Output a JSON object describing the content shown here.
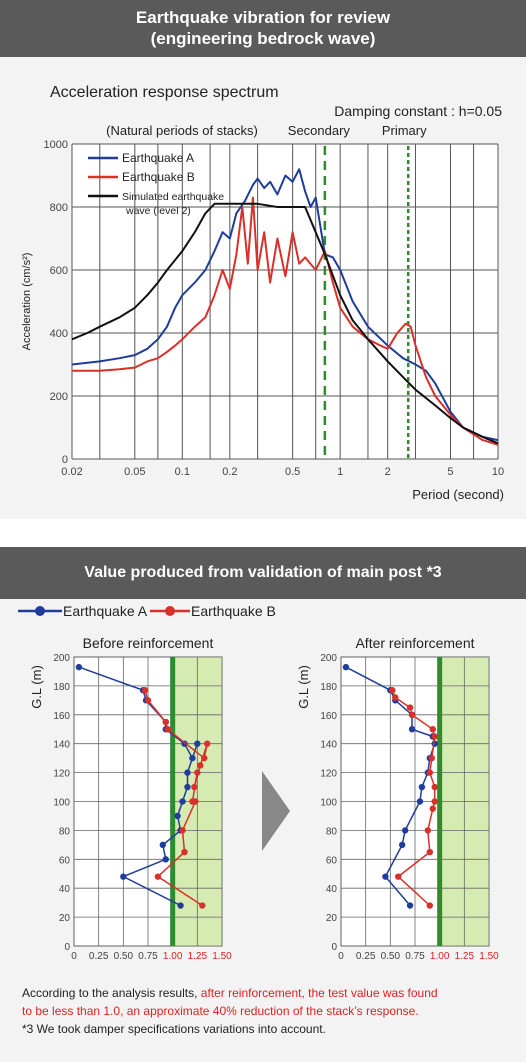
{
  "headers": {
    "top_line1": "Earthquake vibration for review",
    "top_line2": "(engineering bedrock wave)",
    "bottom": "Value produced from validation of main post *3"
  },
  "colors": {
    "header_bg": "#5a5a5a",
    "quake_a": "#1f3d9a",
    "quake_b": "#d9302a",
    "simulated": "#111111",
    "green_line": "#2e8b2e",
    "green_zone": "#d6ebb2"
  },
  "chart_data": [
    {
      "type": "line",
      "title": "Acceleration response spectrum",
      "subtitle": "Damping constant : h=0.05",
      "xlabel": "Period (second)",
      "ylabel": "Acceleration (cm/s²)",
      "xscale": "log",
      "xlim": [
        0.02,
        10
      ],
      "ylim": [
        0,
        1000
      ],
      "x_ticks": [
        "0.02",
        "0.05",
        "0.1",
        "0.2",
        "0.5",
        "1",
        "2",
        "5",
        "10"
      ],
      "y_ticks": [
        "0",
        "200",
        "400",
        "600",
        "800",
        "1000"
      ],
      "grid": true,
      "legend_position": "top-left",
      "annotations": {
        "natural_periods": "(Natural periods of stacks)",
        "secondary": "Secondary",
        "primary": "Primary",
        "secondary_period": 0.8,
        "primary_period": 2.7
      },
      "series": [
        {
          "name": "Earthquake A",
          "x": [
            0.02,
            0.03,
            0.04,
            0.05,
            0.06,
            0.07,
            0.08,
            0.09,
            0.1,
            0.12,
            0.14,
            0.16,
            0.18,
            0.2,
            0.22,
            0.25,
            0.28,
            0.3,
            0.33,
            0.36,
            0.4,
            0.45,
            0.5,
            0.55,
            0.6,
            0.65,
            0.7,
            0.8,
            0.9,
            1.0,
            1.2,
            1.5,
            2.0,
            2.5,
            3.0,
            3.5,
            4.0,
            5.0,
            6.0,
            8.0,
            10.0
          ],
          "values": [
            300,
            310,
            320,
            330,
            350,
            380,
            420,
            480,
            520,
            560,
            600,
            660,
            720,
            700,
            780,
            820,
            870,
            890,
            860,
            880,
            840,
            900,
            880,
            920,
            850,
            800,
            830,
            650,
            640,
            600,
            500,
            420,
            360,
            320,
            300,
            280,
            240,
            150,
            100,
            70,
            60
          ]
        },
        {
          "name": "Earthquake B",
          "x": [
            0.02,
            0.03,
            0.04,
            0.05,
            0.06,
            0.07,
            0.08,
            0.09,
            0.1,
            0.12,
            0.14,
            0.16,
            0.18,
            0.2,
            0.22,
            0.24,
            0.26,
            0.28,
            0.3,
            0.33,
            0.36,
            0.4,
            0.45,
            0.5,
            0.55,
            0.6,
            0.7,
            0.8,
            0.9,
            1.0,
            1.2,
            1.5,
            1.8,
            2.0,
            2.3,
            2.6,
            2.8,
            3.0,
            3.5,
            4.0,
            5.0,
            6.0,
            8.0,
            10.0
          ],
          "values": [
            280,
            280,
            285,
            290,
            310,
            320,
            340,
            360,
            380,
            420,
            450,
            520,
            600,
            540,
            650,
            800,
            620,
            830,
            600,
            720,
            560,
            700,
            580,
            720,
            620,
            640,
            600,
            660,
            560,
            480,
            420,
            380,
            360,
            350,
            400,
            430,
            420,
            360,
            260,
            200,
            140,
            100,
            60,
            45
          ]
        },
        {
          "name": "Simulated earthquake wave (level 2)",
          "x": [
            0.02,
            0.025,
            0.03,
            0.04,
            0.05,
            0.06,
            0.07,
            0.08,
            0.1,
            0.12,
            0.14,
            0.16,
            0.2,
            0.3,
            0.4,
            0.6,
            0.7,
            0.8,
            1.0,
            1.2,
            1.5,
            2.0,
            2.5,
            3.0,
            4.0,
            5.0,
            6.0,
            8.0,
            10.0
          ],
          "values": [
            380,
            400,
            420,
            450,
            480,
            520,
            560,
            600,
            660,
            720,
            780,
            810,
            810,
            810,
            800,
            800,
            720,
            650,
            520,
            440,
            380,
            310,
            260,
            220,
            170,
            130,
            100,
            70,
            50
          ]
        }
      ]
    },
    {
      "type": "line",
      "title": "Before reinforcement",
      "ylabel": "G.L (m)",
      "xlim": [
        0,
        1.5
      ],
      "ylim": [
        0,
        200
      ],
      "x_ticks": [
        "0",
        "0.25",
        "0.50",
        "0.75",
        "1.00",
        "1.25",
        "1.50"
      ],
      "y_ticks": [
        "0",
        "20",
        "40",
        "60",
        "80",
        "100",
        "120",
        "140",
        "160",
        "180",
        "200"
      ],
      "threshold": 1.0,
      "series": [
        {
          "name": "Earthquake A",
          "x": [
            0.05,
            0.7,
            0.73,
            0.93,
            0.93,
            1.12,
            1.2,
            1.25,
            1.15,
            1.15,
            1.1,
            1.05,
            1.08,
            0.9,
            0.93,
            0.5,
            1.08
          ],
          "y": [
            193,
            177,
            170,
            155,
            150,
            140,
            130,
            140,
            120,
            110,
            100,
            90,
            80,
            70,
            60,
            48,
            28
          ]
        },
        {
          "name": "Earthquake B",
          "x": [
            0.72,
            0.75,
            0.93,
            0.95,
            1.32,
            1.35,
            1.28,
            1.22,
            1.25,
            1.2,
            1.23,
            1.1,
            1.12,
            0.85,
            1.3
          ],
          "y": [
            177,
            170,
            155,
            150,
            130,
            140,
            125,
            110,
            120,
            100,
            100,
            80,
            65,
            48,
            28
          ]
        }
      ]
    },
    {
      "type": "line",
      "title": "After reinforcement",
      "ylabel": "G.L (m)",
      "xlim": [
        0,
        1.5
      ],
      "ylim": [
        0,
        200
      ],
      "x_ticks": [
        "0",
        "0.25",
        "0.50",
        "0.75",
        "1.00",
        "1.25",
        "1.50"
      ],
      "y_ticks": [
        "0",
        "20",
        "40",
        "60",
        "80",
        "100",
        "120",
        "140",
        "160",
        "180",
        "200"
      ],
      "threshold": 1.0,
      "series": [
        {
          "name": "Earthquake A",
          "x": [
            0.05,
            0.5,
            0.55,
            0.72,
            0.72,
            0.93,
            0.95,
            0.9,
            0.88,
            0.82,
            0.8,
            0.65,
            0.62,
            0.45,
            0.7
          ],
          "y": [
            193,
            177,
            170,
            160,
            150,
            145,
            140,
            130,
            120,
            110,
            100,
            80,
            70,
            48,
            28
          ]
        },
        {
          "name": "Earthquake B",
          "x": [
            0.52,
            0.55,
            0.7,
            0.72,
            0.93,
            0.95,
            0.92,
            0.9,
            0.95,
            0.95,
            0.93,
            0.88,
            0.9,
            0.58,
            0.9
          ],
          "y": [
            177,
            172,
            165,
            160,
            150,
            145,
            130,
            120,
            110,
            100,
            95,
            80,
            65,
            48,
            28
          ]
        }
      ]
    }
  ],
  "legend_bottom": [
    "Earthquake A",
    "Earthquake B"
  ],
  "footer": {
    "line1_black": "According to the analysis results, ",
    "line1_red": "after reinforcement, the test value was found",
    "line2_red": "to be less than 1.0, an approximate 40% reduction of the stack’s response.",
    "note": "*3 We took damper specifications variations into account."
  }
}
